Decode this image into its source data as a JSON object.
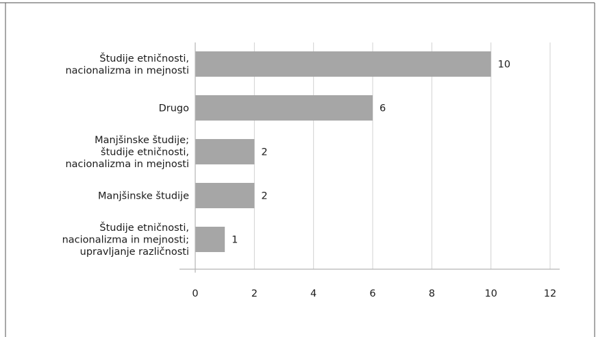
{
  "chart_data": {
    "type": "bar",
    "orientation": "horizontal",
    "categories": [
      [
        "Študije etničnosti,",
        "nacionalizma in mejnosti"
      ],
      [
        "Drugo"
      ],
      [
        "Manjšinske študije;",
        "študije etničnosti,",
        "nacionalizma in mejnosti"
      ],
      [
        "Manjšinske študije"
      ],
      [
        "Študije etničnosti,",
        "nacionalizma in mejnosti;",
        "upravljanje različnosti"
      ]
    ],
    "values": [
      10,
      6,
      2,
      2,
      1
    ],
    "data_labels": [
      "10",
      "6",
      "2",
      "2",
      "1"
    ],
    "xlim": [
      0,
      12
    ],
    "xticks": [
      0,
      2,
      4,
      6,
      8,
      10,
      12
    ],
    "xtick_labels": [
      "0",
      "2",
      "4",
      "6",
      "8",
      "10",
      "12"
    ],
    "grid": true,
    "colors": {
      "bar": "#a6a6a6",
      "grid": "#d0d0d0",
      "axis": "#b5b5b5",
      "frame": "#6e6e6e"
    }
  }
}
